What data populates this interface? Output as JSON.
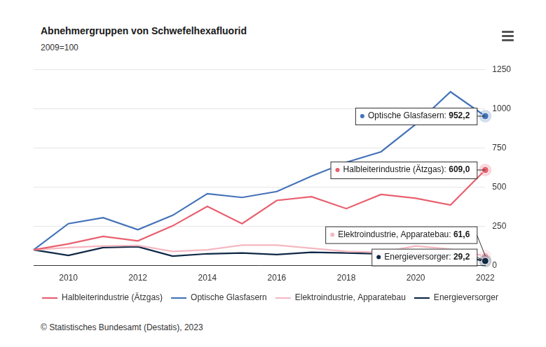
{
  "chart_data": {
    "type": "line",
    "title": "Abnehmergruppen von Schwefelhexafluorid",
    "subtitle": "2009=100",
    "source": "© Statistisches Bundesamt (Destatis), 2023",
    "categories": [
      null,
      "2010",
      null,
      "2012",
      null,
      "2014",
      null,
      "2016",
      null,
      "2018",
      null,
      "2020",
      null,
      "2022"
    ],
    "series": [
      {
        "name": "Halbleiterindustrie (Ätzgas)",
        "color": "#e8606f",
        "values": [
          100,
          138,
          186,
          157,
          253,
          377,
          267,
          415,
          439,
          363,
          453,
          429,
          386,
          609.0
        ]
      },
      {
        "name": "Optische Glasfasern",
        "color": "#4573b9",
        "values": [
          100,
          267,
          305,
          229,
          320,
          458,
          434,
          472,
          570,
          658,
          725,
          900,
          1107,
          952.2
        ]
      },
      {
        "name": "Elektroindustrie, Apparatebau",
        "color": "#f5b8c2",
        "values": [
          100,
          115,
          125,
          128,
          90,
          100,
          130,
          130,
          110,
          90,
          85,
          125,
          105,
          61.6
        ]
      },
      {
        "name": "Energieversorger",
        "color": "#0f2846",
        "values": [
          100,
          65,
          115,
          120,
          60,
          75,
          80,
          70,
          85,
          80,
          75,
          80,
          70,
          29.2
        ]
      }
    ],
    "annotations": [
      {
        "series": "Optische Glasfasern",
        "category": "2022",
        "text": "Optische Glasfasern:",
        "value": 952.2,
        "label": "952,2"
      },
      {
        "series": "Halbleiterindustrie (Ätzgas)",
        "category": "2022",
        "text": "Halbleiterindustrie (Ätzgas):",
        "value": 609.0,
        "label": "609,0"
      },
      {
        "series": "Elektroindustrie, Apparatebau",
        "category": "2022",
        "text": "Elektroindustrie, Apparatebau:",
        "value": 61.6,
        "label": "61,6"
      },
      {
        "series": "Energieversorger",
        "category": "2022",
        "text": "Energieversorger:",
        "value": 29.2,
        "label": "29,2"
      }
    ],
    "ylim": [
      0,
      1250
    ],
    "yticks": [
      0,
      250,
      500,
      750,
      1000,
      1250
    ],
    "grid": true,
    "legend": "bottom"
  }
}
